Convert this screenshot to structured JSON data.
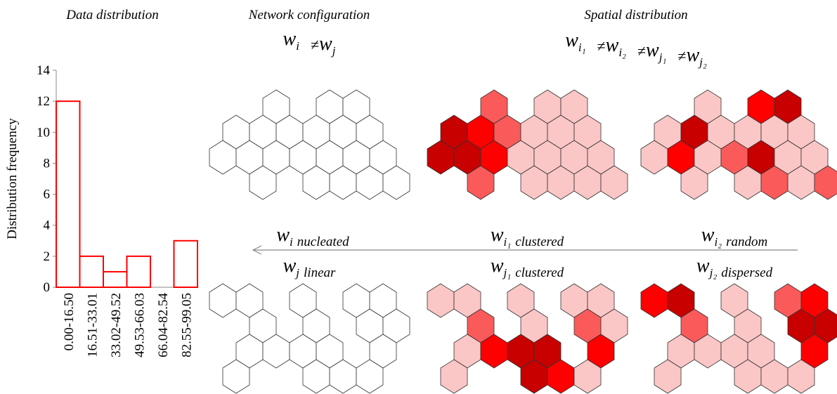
{
  "chart_data": {
    "type": "bar",
    "title": "Data distribution",
    "categories": [
      "0.00-16.50",
      "16.51-33.01",
      "33.02-49.52",
      "49.53-66.03",
      "66.04-82.54",
      "82.55-99.05"
    ],
    "values": [
      12,
      2,
      1,
      2,
      0,
      3
    ],
    "color": "#ff0000",
    "ylabel": "Distribution frequency",
    "ylim": [
      0,
      14
    ],
    "yticks": [
      0,
      2,
      4,
      6,
      8,
      10,
      12,
      14
    ],
    "grid": false
  },
  "headers": [
    "Network configuration",
    "Spatial distribution"
  ],
  "equations": [
    {
      "operator": "≠",
      "terms": [
        {
          "var": "w",
          "sub": "i"
        },
        {
          "var": "w",
          "sub": "j"
        }
      ]
    },
    {
      "operator": "≠",
      "terms": [
        {
          "var": "w",
          "sub": "i₁"
        },
        {
          "var": "w",
          "sub": "i₂"
        },
        {
          "var": "w",
          "sub": "j₁"
        },
        {
          "var": "w",
          "sub": "j₂"
        }
      ]
    }
  ],
  "labels": [
    {
      "var": "w",
      "sub": "i",
      "text": "nucleated"
    },
    {
      "var": "w",
      "sub": "i₁",
      "text": "clustered"
    },
    {
      "var": "w",
      "sub": "i₂",
      "text": "random"
    },
    {
      "var": "w",
      "sub": "j",
      "text": "linear"
    },
    {
      "var": "w",
      "sub": "j₁",
      "text": "clustered"
    },
    {
      "var": "w",
      "sub": "j₂",
      "text": "dispersed"
    }
  ]
}
